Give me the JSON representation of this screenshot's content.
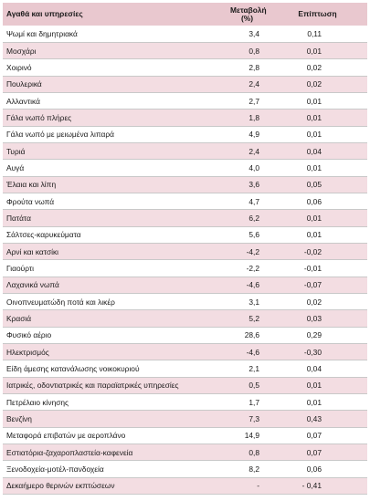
{
  "table": {
    "headers": {
      "item": "Αγαθά και υπηρεσίες",
      "change_line1": "Μεταβολή",
      "change_line2": "(%)",
      "effect": "Επίπτωση"
    },
    "rows": [
      {
        "item": "Ψωμί και δημητριακά",
        "change": "3,4",
        "effect": "0,11"
      },
      {
        "item": "Μοσχάρι",
        "change": "0,8",
        "effect": "0,01"
      },
      {
        "item": "Χοιρινό",
        "change": "2,8",
        "effect": "0,02"
      },
      {
        "item": "Πουλερικά",
        "change": "2,4",
        "effect": "0,02"
      },
      {
        "item": "Αλλαντικά",
        "change": "2,7",
        "effect": "0,01"
      },
      {
        "item": "Γάλα νωπό πλήρες",
        "change": "1,8",
        "effect": "0,01"
      },
      {
        "item": "Γάλα νωπό με μειωμένα λιπαρά",
        "change": "4,9",
        "effect": "0,01"
      },
      {
        "item": "Τυριά",
        "change": "2,4",
        "effect": "0,04"
      },
      {
        "item": "Αυγά",
        "change": "4,0",
        "effect": "0,01"
      },
      {
        "item": "Έλαια και λίπη",
        "change": "3,6",
        "effect": "0,05"
      },
      {
        "item": "Φρούτα νωπά",
        "change": "4,7",
        "effect": "0,06"
      },
      {
        "item": "Πατάτα",
        "change": "6,2",
        "effect": "0,01"
      },
      {
        "item": "Σάλτσες-καρυκεύματα",
        "change": "5,6",
        "effect": "0,01"
      },
      {
        "item": "Αρνί και κατσίκι",
        "change": "-4,2",
        "effect": "-0,02"
      },
      {
        "item": "Γιαούρτι",
        "change": "-2,2",
        "effect": "-0,01"
      },
      {
        "item": "Λαχανικά νωπά",
        "change": "-4,6",
        "effect": "-0,07"
      },
      {
        "item": "Οινοπνευματώδη ποτά και λικέρ",
        "change": "3,1",
        "effect": "0,02"
      },
      {
        "item": "Κρασιά",
        "change": "5,2",
        "effect": "0,03"
      },
      {
        "item": "Φυσικό αέριο",
        "change": "28,6",
        "effect": "0,29"
      },
      {
        "item": "Ηλεκτρισμός",
        "change": "-4,6",
        "effect": "-0,30"
      },
      {
        "item": "Είδη άμεσης κατανάλωσης νοικοκυριού",
        "change": "2,1",
        "effect": "0,04"
      },
      {
        "item": "Ιατρικές, οδοντιατρικές και παραϊατρικές υπηρεσίες",
        "change": "0,5",
        "effect": "0,01"
      },
      {
        "item": "Πετρέλαιο κίνησης",
        "change": "1,7",
        "effect": "0,01"
      },
      {
        "item": "Βενζίνη",
        "change": "7,3",
        "effect": "0,43"
      },
      {
        "item": "Μεταφορά επιβατών με αεροπλάνο",
        "change": "14,9",
        "effect": "0,07"
      },
      {
        "item": "Εστιατόρια-ζαχαροπλαστεία-καφενεία",
        "change": "0,8",
        "effect": "0,07"
      },
      {
        "item": "Ξενοδοχεία-μοτέλ-πανδοχεία",
        "change": "8,2",
        "effect": "0,06"
      },
      {
        "item": "Δεκαήμερο θερινών εκπτώσεων",
        "change": "-",
        "effect": "- 0,41"
      }
    ]
  },
  "colors": {
    "header_bg": "#e9c8cf",
    "alt_row_bg": "#f3dde2",
    "border": "#c9c9c9"
  }
}
